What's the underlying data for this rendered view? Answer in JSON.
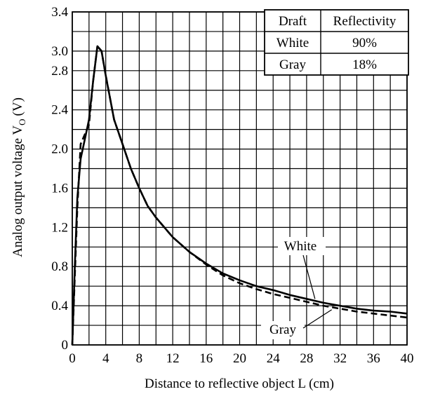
{
  "chart_data": {
    "type": "line",
    "title": "",
    "xlabel": "Distance to reflective object L (cm)",
    "ylabel": "Analog output voltage V",
    "ylabel_subscript": "O",
    "ylabel_unit": "(V)",
    "xlim": [
      0,
      40
    ],
    "ylim": [
      0,
      3.4
    ],
    "x_ticks": [
      0,
      4,
      8,
      12,
      16,
      20,
      24,
      28,
      32,
      36,
      40
    ],
    "x_tick_labels": [
      "0",
      "4",
      "8",
      "12",
      "16",
      "20",
      "24",
      "28",
      "32",
      "36",
      "40"
    ],
    "y_ticks": [
      0,
      0.4,
      0.8,
      1.2,
      1.6,
      2.0,
      2.4,
      2.8,
      3.0,
      3.4
    ],
    "y_tick_labels": [
      "0",
      "0.4",
      "0.8",
      "1.2",
      "1.6",
      "2.0",
      "2.4",
      "2.8",
      "3.0",
      "3.4"
    ],
    "grid": true,
    "grid_x_step": 2,
    "grid_y_step": 0.2,
    "legend_table": {
      "placement": "top-right",
      "headers": [
        "Draft",
        "Reflectivity"
      ],
      "rows": [
        [
          "White",
          "90%"
        ],
        [
          "Gray",
          "18%"
        ]
      ]
    },
    "annotations": [
      {
        "text": "White",
        "series": "White",
        "point_x": 29,
        "point_y": 0.47
      },
      {
        "text": "Gray",
        "series": "Gray",
        "point_x": 31,
        "point_y": 0.36
      }
    ],
    "series": [
      {
        "name": "White",
        "style": "solid",
        "x": [
          0,
          0.3,
          0.6,
          1,
          1.5,
          2,
          2.5,
          3,
          3.5,
          4,
          5,
          6,
          7,
          8,
          9,
          10,
          12,
          14,
          16,
          18,
          20,
          22,
          24,
          26,
          28,
          30,
          32,
          34,
          36,
          38,
          40
        ],
        "y": [
          0,
          0.8,
          1.5,
          1.9,
          2.1,
          2.3,
          2.7,
          3.05,
          3.0,
          2.75,
          2.3,
          2.05,
          1.8,
          1.6,
          1.42,
          1.3,
          1.1,
          0.95,
          0.83,
          0.73,
          0.66,
          0.6,
          0.56,
          0.51,
          0.47,
          0.43,
          0.4,
          0.37,
          0.35,
          0.34,
          0.32
        ]
      },
      {
        "name": "Gray",
        "style": "dashed",
        "x": [
          0,
          0.3,
          0.6,
          1,
          1.5,
          2,
          2.5,
          3,
          3.5,
          4,
          5,
          6,
          7,
          8,
          9,
          10,
          12,
          14,
          16,
          18,
          20,
          22,
          24,
          26,
          28,
          30,
          32,
          34,
          36,
          38,
          40
        ],
        "y": [
          0,
          0.7,
          1.4,
          2.05,
          2.15,
          2.25,
          2.7,
          3.05,
          3.0,
          2.75,
          2.3,
          2.05,
          1.8,
          1.6,
          1.42,
          1.3,
          1.1,
          0.95,
          0.82,
          0.71,
          0.63,
          0.57,
          0.52,
          0.48,
          0.44,
          0.4,
          0.37,
          0.34,
          0.32,
          0.3,
          0.28
        ]
      }
    ]
  }
}
